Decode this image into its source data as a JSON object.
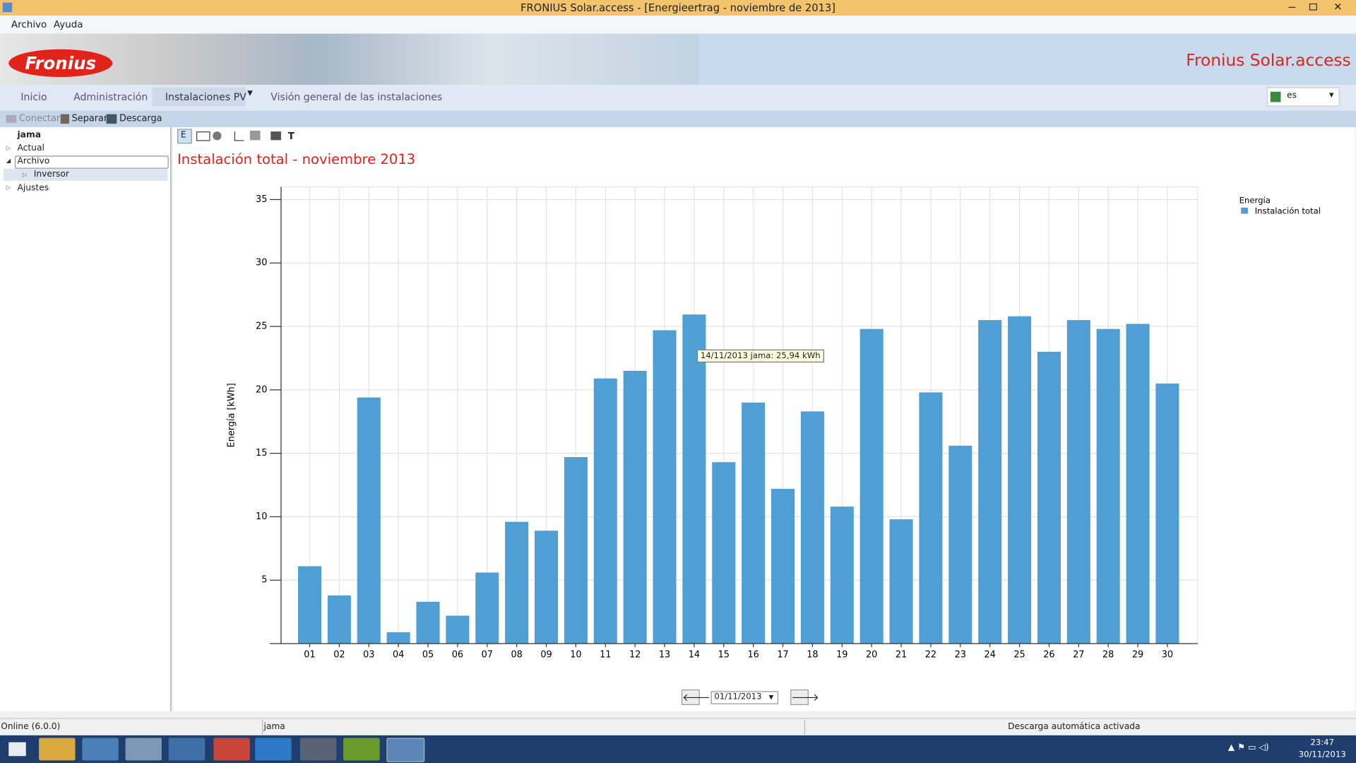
{
  "window": {
    "title": "FRONIUS Solar.access - [Energieertrag - noviembre de 2013]"
  },
  "menu": [
    "Archivo",
    "Ayuda"
  ],
  "header": {
    "logo": "Fronius",
    "brand": "Fronius Solar.access"
  },
  "nav": {
    "tabs": [
      "Inicio",
      "Administración",
      "Instalaciones PV",
      "Visión general de las instalaciones"
    ],
    "language": "es"
  },
  "toolbar": [
    "Conectar",
    "Separar",
    "Descarga"
  ],
  "tree": [
    "jama",
    "Actual",
    "Archivo",
    "Inversor",
    "Ajustes"
  ],
  "chart_toolbar": [
    "E",
    "T"
  ],
  "chart_data": {
    "type": "bar",
    "title": "Instalación total - noviembre 2013",
    "y_label": "Energía [kWh]",
    "legend_title": "Energía",
    "legend": "top-right",
    "grid": true,
    "tooltip": "14/11/2013 jama: 25,94 kWh",
    "categories": [
      "01",
      "02",
      "03",
      "04",
      "05",
      "06",
      "07",
      "08",
      "09",
      "10",
      "11",
      "12",
      "13",
      "14",
      "15",
      "16",
      "17",
      "18",
      "19",
      "20",
      "21",
      "22",
      "23",
      "24",
      "25",
      "26",
      "27",
      "28",
      "29",
      "30"
    ],
    "series": [
      {
        "name": "Instalación total",
        "color": "#4f9fd5",
        "values": [
          6.1,
          3.8,
          19.4,
          0.9,
          3.3,
          2.2,
          5.6,
          9.6,
          8.9,
          14.7,
          20.9,
          21.5,
          24.7,
          25.94,
          14.3,
          19.0,
          12.2,
          18.3,
          10.8,
          24.8,
          9.8,
          19.8,
          15.6,
          25.5,
          25.8,
          23.0,
          25.5,
          24.8,
          25.2,
          20.5
        ]
      }
    ],
    "ylim": [
      0,
      36
    ],
    "yticks": [
      5,
      10,
      15,
      20,
      25,
      30,
      35
    ]
  },
  "date_picker": {
    "value": "01/11/2013"
  },
  "status": [
    "Online (6.0.0)",
    "jama",
    "Descarga automática activada"
  ],
  "clock": {
    "time": "23:47",
    "date": "30/11/2013"
  }
}
